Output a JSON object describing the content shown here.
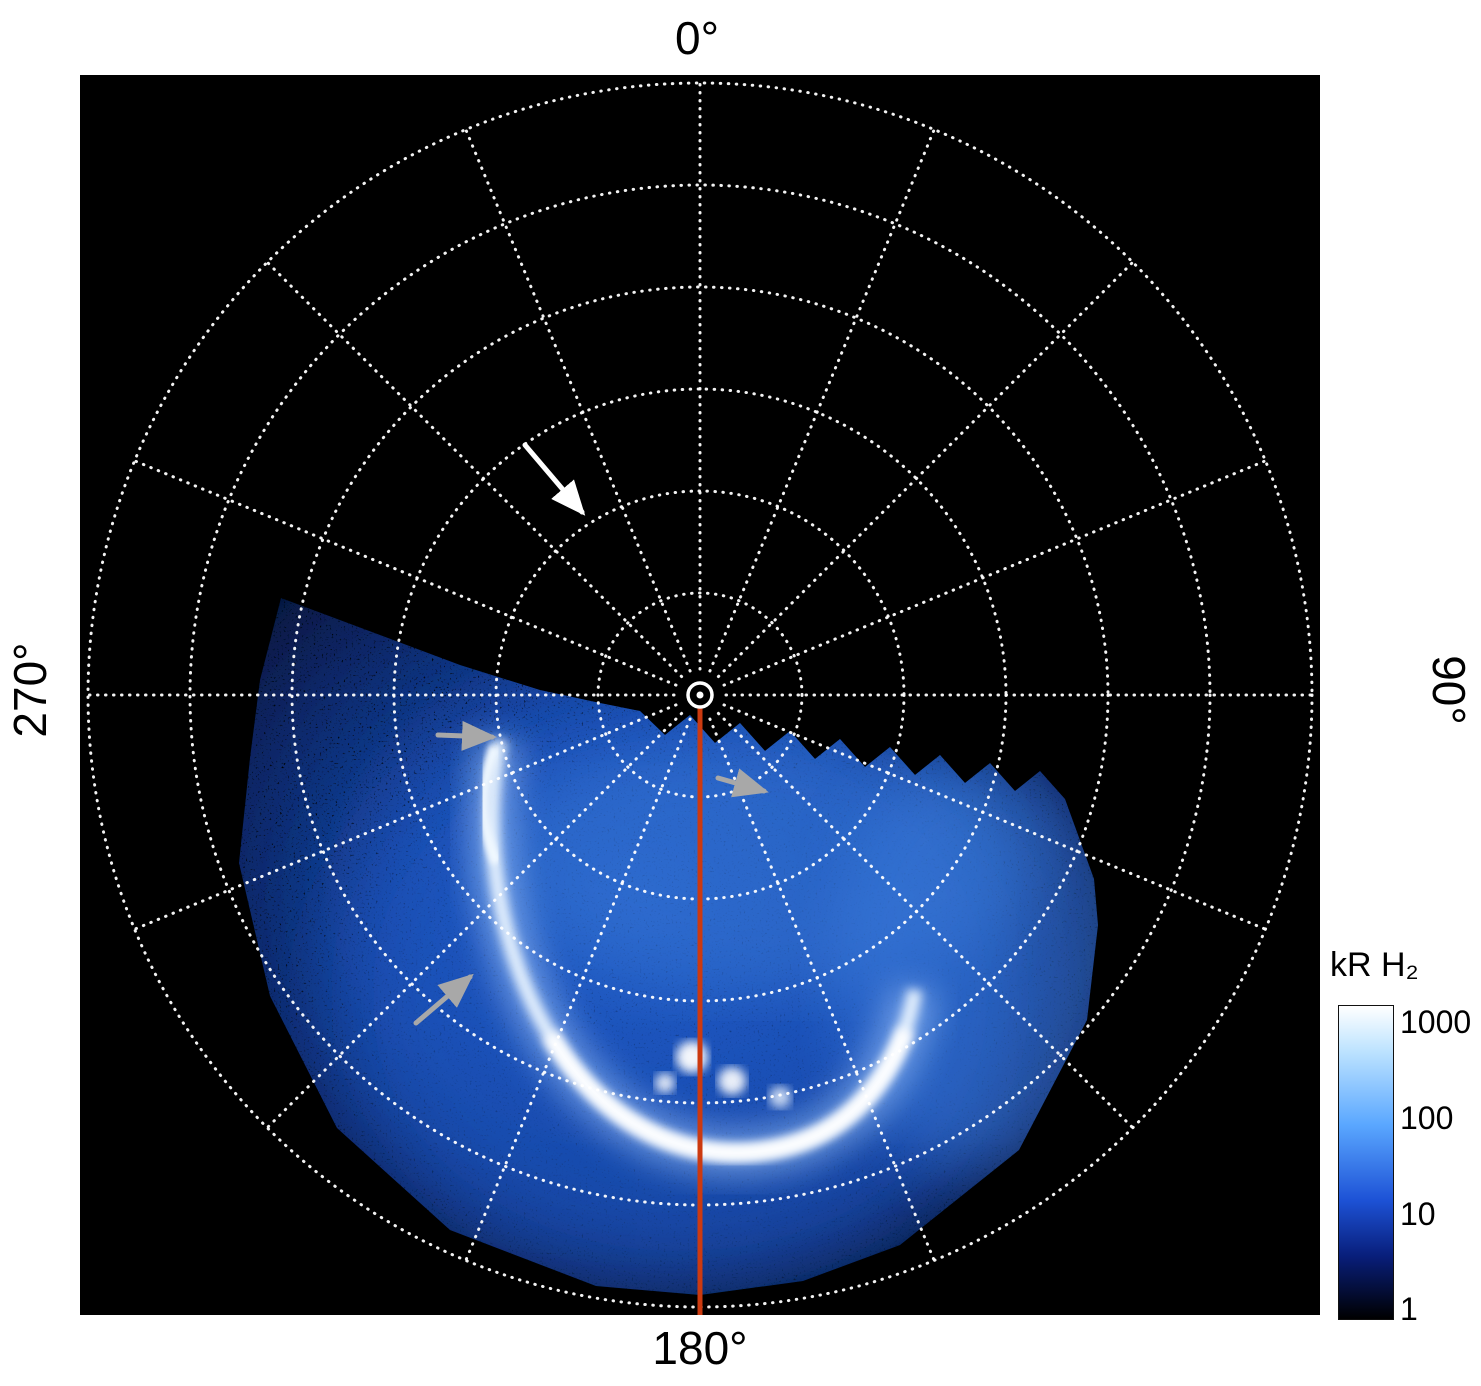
{
  "figure": {
    "background": "#ffffff",
    "plot_bg": "#000000"
  },
  "plot_labels": {
    "top": "0°",
    "right": "90°",
    "bottom": "180°",
    "left": "270°"
  },
  "colorbar": {
    "title": "kR H₂",
    "ticks": [
      "1000",
      "100",
      "10",
      "1"
    ]
  },
  "chart_data": {
    "type": "heatmap",
    "projection": "polar",
    "description": "Polar projection map of auroral H2 emission brightness on a black background with a white dotted polar grid. Diffuse speckled blue emission with a bright crescent-shaped main auroral arc fills the sector from about 100° through 180° to 285° azimuth; the opposite (upper) sector contains no data. A red meridian line marks 180°.",
    "azimuth_tick_labels": [
      "0°",
      "90°",
      "180°",
      "270°"
    ],
    "grid": {
      "num_rings": 6,
      "azimuth_step_deg": 22.5,
      "line_style": "dotted",
      "color": "#ffffff"
    },
    "colorbar": {
      "label": "kR H₂",
      "scale": "log",
      "ticks": [
        1000,
        100,
        10,
        1
      ],
      "range": [
        1,
        1000
      ],
      "colormap": [
        "#000000",
        "#081e7a",
        "#1d52d6",
        "#5aa7ff",
        "#bfe4ff",
        "#ffffff"
      ]
    },
    "meridian_line": {
      "azimuth_deg": 180,
      "color": "#cc3a10"
    },
    "emission": {
      "azimuth_extent_deg": [
        100,
        285
      ],
      "main_arc": "bright crescent sweeping from ~255° azimuth at mid radius through local midnight to a bright hook near ~150° azimuth",
      "peak_brightness_kR": 1000,
      "diffuse_brightness_kR": "10-100"
    },
    "annotations": [
      {
        "shape": "arrow",
        "color": "#ffffff",
        "marker": "ah-light",
        "from": [
          445,
          370
        ],
        "to": [
          502,
          437
        ]
      },
      {
        "shape": "arrow",
        "color": "#a8a8a8",
        "marker": "ah-gray",
        "from": [
          358,
          660
        ],
        "to": [
          412,
          662
        ]
      },
      {
        "shape": "arrow",
        "color": "#a8a8a8",
        "marker": "ah-gray",
        "from": [
          638,
          703
        ],
        "to": [
          684,
          716
        ]
      },
      {
        "shape": "arrow",
        "color": "#a8a8a8",
        "marker": "ah-gray",
        "from": [
          336,
          948
        ],
        "to": [
          390,
          902
        ]
      }
    ]
  }
}
